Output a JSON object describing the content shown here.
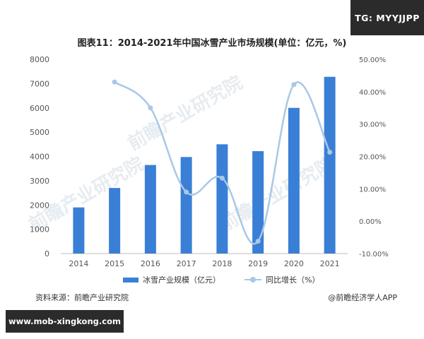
{
  "badge": "TG: MYYJJPP",
  "source": "资料来源：前瞻产业研究院",
  "credit": "@前瞻经济学人APP",
  "url_banner": "www.mob-xingkong.com",
  "watermark": "前瞻产业研究院",
  "chart_data": {
    "type": "bar",
    "title": "图表11：2014-2021年中国冰雪产业市场规模(单位：亿元，%)",
    "categories": [
      "2014",
      "2015",
      "2016",
      "2017",
      "2018",
      "2019",
      "2020",
      "2021"
    ],
    "series": [
      {
        "name": "冰雪产业规模（亿元）",
        "type": "bar",
        "axis": "left",
        "color": "#3a7fd6",
        "values": [
          1900,
          2700,
          3647,
          3976,
          4500,
          4218,
          6000,
          7280
        ]
      },
      {
        "name": "同比增长（%）",
        "type": "line",
        "axis": "right",
        "color": "#a8c8e6",
        "values": [
          null,
          43.0,
          35.0,
          9.0,
          13.3,
          -6.2,
          42.2,
          21.3
        ]
      }
    ],
    "y_left": {
      "min": 0,
      "max": 8000,
      "ticks": [
        0,
        1000,
        2000,
        3000,
        4000,
        5000,
        6000,
        7000,
        8000
      ]
    },
    "y_right": {
      "min": -10,
      "max": 50,
      "ticks": [
        "-10.00%",
        "0.00%",
        "10.00%",
        "20.00%",
        "30.00%",
        "40.00%",
        "50.00%"
      ]
    },
    "legend": "bottom",
    "grid": false
  }
}
